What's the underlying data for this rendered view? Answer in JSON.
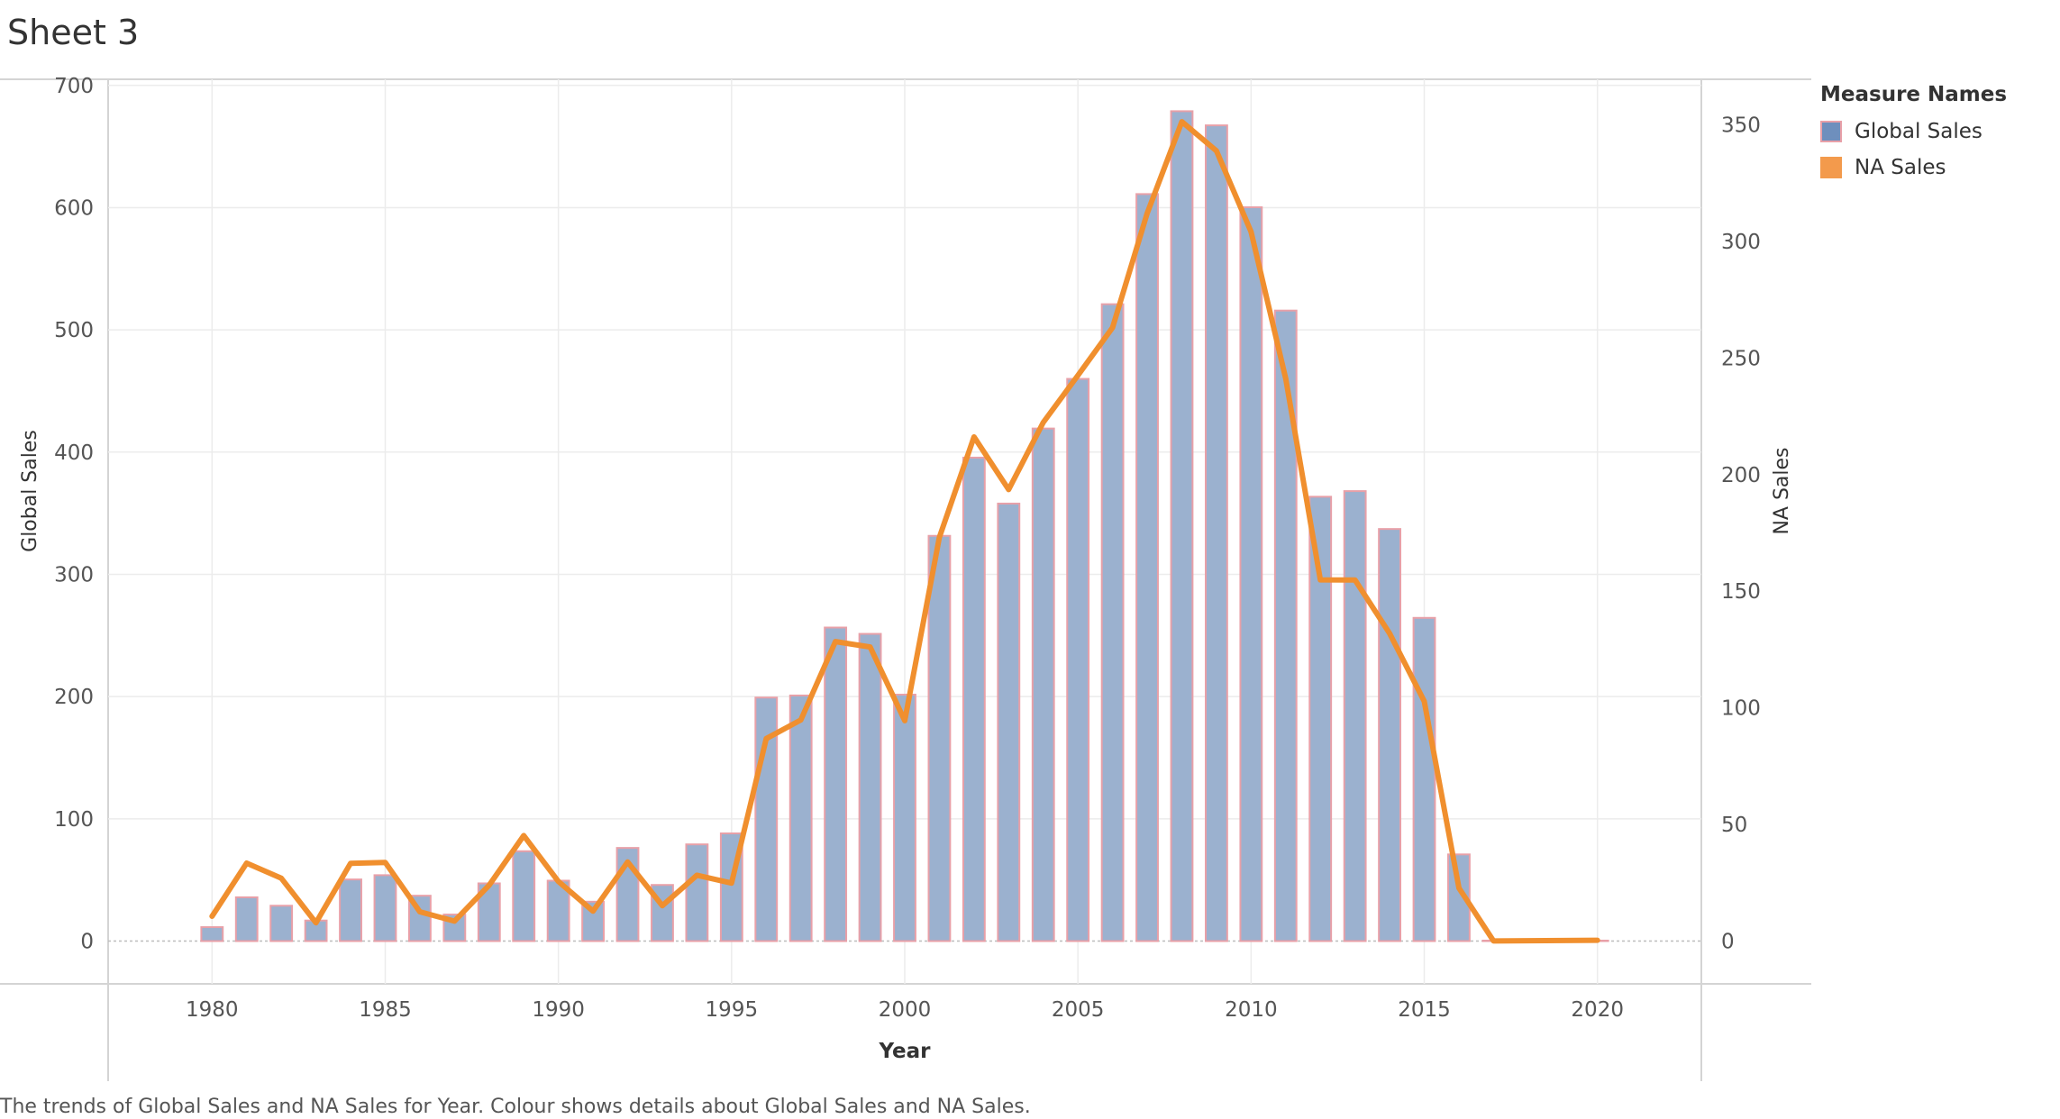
{
  "sheet": {
    "title": "Sheet 3"
  },
  "legend": {
    "title": "Measure Names",
    "items": [
      {
        "label": "Global Sales",
        "color": "#6e8fbd"
      },
      {
        "label": "NA Sales",
        "color": "#f39a4c"
      }
    ]
  },
  "caption": "The trends of Global Sales and NA Sales for Year.  Colour shows details about Global Sales and NA Sales.",
  "chart_data": {
    "type": "bar",
    "combo": "bar + line (dual axis)",
    "xlabel": "Year",
    "ylabel": "Global Sales",
    "y2label": "NA Sales",
    "xlim": [
      1977,
      2023
    ],
    "ylim": [
      -35,
      705
    ],
    "y2lim": [
      -18.4,
      369.6
    ],
    "xticks": [
      1980,
      1985,
      1990,
      1995,
      2000,
      2005,
      2010,
      2015,
      2020
    ],
    "yticks": [
      0,
      100,
      200,
      300,
      400,
      500,
      600,
      700
    ],
    "y2ticks": [
      0,
      50,
      100,
      150,
      200,
      250,
      300,
      350
    ],
    "grid": true,
    "legend_position": "right",
    "colors": {
      "bar_fill": "#9bb1cf",
      "bar_stroke": "#e8a0a8",
      "line": "#f08f2e",
      "gridline": "#ececec",
      "axis": "#cccccc"
    },
    "series": [
      {
        "name": "Global Sales",
        "type": "bar",
        "axis": "left",
        "points": [
          [
            1980,
            11.4
          ],
          [
            1981,
            35.8
          ],
          [
            1982,
            28.9
          ],
          [
            1983,
            16.8
          ],
          [
            1984,
            50.4
          ],
          [
            1985,
            53.9
          ],
          [
            1986,
            37.1
          ],
          [
            1987,
            21.7
          ],
          [
            1988,
            47.2
          ],
          [
            1989,
            73.5
          ],
          [
            1990,
            49.4
          ],
          [
            1991,
            32.2
          ],
          [
            1992,
            76.2
          ],
          [
            1993,
            45.9
          ],
          [
            1994,
            79.1
          ],
          [
            1995,
            88.1
          ],
          [
            1996,
            199.2
          ],
          [
            1997,
            200.9
          ],
          [
            1998,
            256.5
          ],
          [
            1999,
            251.3
          ],
          [
            2000,
            201.6
          ],
          [
            2001,
            331.5
          ],
          [
            2002,
            395.5
          ],
          [
            2003,
            357.9
          ],
          [
            2004,
            419.3
          ],
          [
            2005,
            459.9
          ],
          [
            2006,
            521.0
          ],
          [
            2007,
            611.1
          ],
          [
            2008,
            678.9
          ],
          [
            2009,
            667.3
          ],
          [
            2010,
            600.3
          ],
          [
            2011,
            515.8
          ],
          [
            2012,
            363.5
          ],
          [
            2013,
            368.1
          ],
          [
            2014,
            337.1
          ],
          [
            2015,
            264.4
          ],
          [
            2016,
            70.9
          ],
          [
            2017,
            0.1
          ],
          [
            2020,
            0.3
          ]
        ]
      },
      {
        "name": "NA Sales",
        "type": "line",
        "axis": "right",
        "points": [
          [
            1980,
            10.6
          ],
          [
            1981,
            33.4
          ],
          [
            1982,
            26.9
          ],
          [
            1983,
            7.8
          ],
          [
            1984,
            33.3
          ],
          [
            1985,
            33.7
          ],
          [
            1986,
            12.5
          ],
          [
            1987,
            8.5
          ],
          [
            1988,
            23.9
          ],
          [
            1989,
            45.2
          ],
          [
            1990,
            25.5
          ],
          [
            1991,
            12.8
          ],
          [
            1992,
            33.9
          ],
          [
            1993,
            15.1
          ],
          [
            1994,
            28.2
          ],
          [
            1995,
            24.8
          ],
          [
            1996,
            86.8
          ],
          [
            1997,
            94.8
          ],
          [
            1998,
            128.4
          ],
          [
            1999,
            126.1
          ],
          [
            2000,
            94.5
          ],
          [
            2001,
            173.1
          ],
          [
            2002,
            216.2
          ],
          [
            2003,
            193.6
          ],
          [
            2004,
            222.4
          ],
          [
            2005,
            242.6
          ],
          [
            2006,
            263.1
          ],
          [
            2007,
            312.1
          ],
          [
            2008,
            351.4
          ],
          [
            2009,
            338.9
          ],
          [
            2010,
            304.2
          ],
          [
            2011,
            241.2
          ],
          [
            2012,
            154.9
          ],
          [
            2013,
            154.8
          ],
          [
            2014,
            131.9
          ],
          [
            2015,
            102.8
          ],
          [
            2016,
            22.7
          ],
          [
            2017,
            0.0
          ],
          [
            2020,
            0.3
          ]
        ]
      }
    ]
  }
}
